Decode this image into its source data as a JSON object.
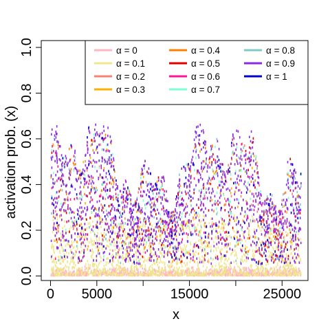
{
  "chart_data": {
    "type": "scatter",
    "title": "",
    "xlabel": "x",
    "ylabel": "activation prob. (x)",
    "xlim": [
      -1000,
      27800
    ],
    "ylim": [
      -0.02,
      1.03
    ],
    "x_ticks": [
      0,
      5000,
      10000,
      15000,
      20000,
      25000
    ],
    "x_tick_labels": [
      "0",
      "5000",
      "",
      "15000",
      "",
      "25000"
    ],
    "y_ticks": [
      0.0,
      0.2,
      0.4,
      0.6,
      0.8,
      1.0
    ],
    "y_tick_labels": [
      "0.0",
      "0.2",
      "0.4",
      "0.6",
      "0.8",
      "1.0"
    ],
    "n_points": 27000,
    "grid": false,
    "legend_position": "top-right",
    "legend_symbol": "α",
    "series": [
      {
        "name": "= 0",
        "alpha": 0,
        "color": "#FFB6C1",
        "y_range": [
          0.0,
          0.04
        ]
      },
      {
        "name": "= 0.1",
        "alpha": 0.1,
        "color": "#F0E68C",
        "y_range": [
          0.0,
          0.28
        ]
      },
      {
        "name": "= 0.2",
        "alpha": 0.2,
        "color": "#FA8072",
        "y_range": [
          0.05,
          0.6
        ]
      },
      {
        "name": "= 0.3",
        "alpha": 0.3,
        "color": "#FFB000",
        "y_range": [
          0.05,
          0.6
        ]
      },
      {
        "name": "= 0.4",
        "alpha": 0.4,
        "color": "#FF7F00",
        "y_range": [
          0.05,
          0.62
        ]
      },
      {
        "name": "= 0.5",
        "alpha": 0.5,
        "color": "#E00000",
        "y_range": [
          0.05,
          0.62
        ]
      },
      {
        "name": "= 0.6",
        "alpha": 0.6,
        "color": "#FF1493",
        "y_range": [
          0.05,
          0.63
        ]
      },
      {
        "name": "= 0.7",
        "alpha": 0.7,
        "color": "#7FFFD4",
        "y_range": [
          0.05,
          0.63
        ]
      },
      {
        "name": "= 0.8",
        "alpha": 0.8,
        "color": "#7EC8C8",
        "y_range": [
          0.05,
          0.64
        ]
      },
      {
        "name": "= 0.9",
        "alpha": 0.9,
        "color": "#8A2BE2",
        "y_range": [
          0.05,
          0.66
        ]
      },
      {
        "name": "= 1",
        "alpha": 1,
        "color": "#0000CD",
        "y_range": [
          0.05,
          0.66
        ]
      }
    ]
  }
}
